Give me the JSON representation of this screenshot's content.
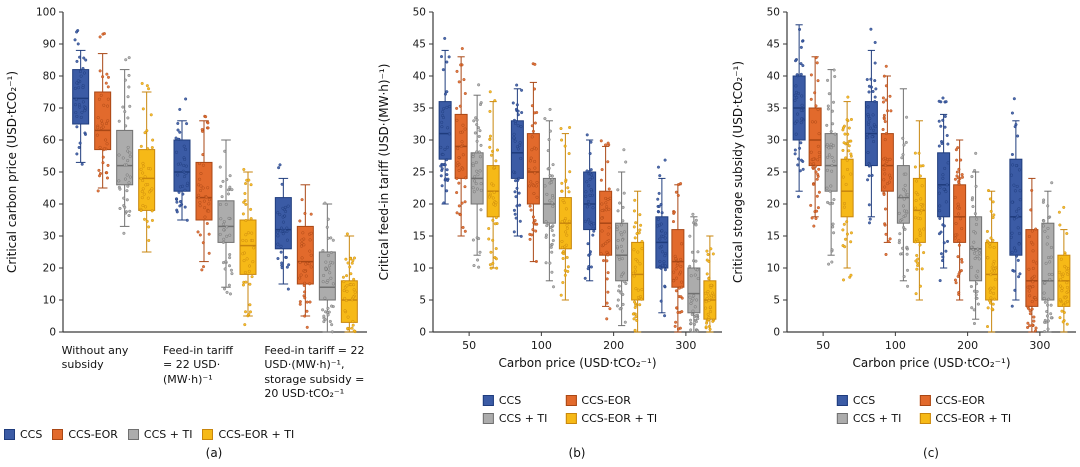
{
  "chart_data": [
    {
      "type": "boxplot",
      "panel_label": "(a)",
      "ylabel": "Critical carbon price (USD·tCO₂⁻¹)",
      "xlabel": "",
      "ylim": [
        0,
        100
      ],
      "ytick_step": 10,
      "grid": false,
      "legend_position": "bottom-row",
      "categories": [
        "Without any\nsubsidy",
        "Feed-in tariff\n= 22 USD·\n(MW·h)⁻¹",
        "Feed-in tariff = 22\nUSD·(MW·h)⁻¹,\nstorage subsidy =\n20 USD·tCO₂⁻¹"
      ],
      "series": [
        {
          "name": "CCS",
          "color": "#3B5BA5",
          "edge": "#1F3C7D",
          "boxes": [
            {
              "whislo": 53,
              "q1": 65,
              "med": 73,
              "q3": 82,
              "whishi": 88
            },
            {
              "whislo": 35,
              "q1": 44,
              "med": 50,
              "q3": 60,
              "whishi": 66
            },
            {
              "whislo": 15,
              "q1": 26,
              "med": 32,
              "q3": 42,
              "whishi": 48
            }
          ]
        },
        {
          "name": "CCS-EOR",
          "color": "#E26A2C",
          "edge": "#A94715",
          "boxes": [
            {
              "whislo": 45,
              "q1": 57,
              "med": 63,
              "q3": 75,
              "whishi": 87
            },
            {
              "whislo": 22,
              "q1": 35,
              "med": 42,
              "q3": 53,
              "whishi": 66
            },
            {
              "whislo": 5,
              "q1": 15,
              "med": 22,
              "q3": 33,
              "whishi": 46
            }
          ]
        },
        {
          "name": "CCS + TI",
          "color": "#ACACAC",
          "edge": "#707070",
          "boxes": [
            {
              "whislo": 33,
              "q1": 46,
              "med": 52,
              "q3": 63,
              "whishi": 82
            },
            {
              "whislo": 14,
              "q1": 28,
              "med": 33,
              "q3": 41,
              "whishi": 60
            },
            {
              "whislo": 0,
              "q1": 10,
              "med": 14,
              "q3": 25,
              "whishi": 40
            }
          ]
        },
        {
          "name": "CCS-EOR + TI",
          "color": "#F6B917",
          "edge": "#C8860D",
          "boxes": [
            {
              "whislo": 25,
              "q1": 38,
              "med": 48,
              "q3": 57,
              "whishi": 75
            },
            {
              "whislo": 5,
              "q1": 18,
              "med": 27,
              "q3": 35,
              "whishi": 50
            },
            {
              "whislo": 0,
              "q1": 3,
              "med": 10,
              "q3": 16,
              "whishi": 30
            }
          ]
        }
      ]
    },
    {
      "type": "boxplot",
      "panel_label": "(b)",
      "ylabel": "Critical feed-in tariff (USD·(MW·h)⁻¹)",
      "xlabel": "Carbon price (USD·tCO₂⁻¹)",
      "ylim": [
        0,
        50
      ],
      "ytick_step": 5,
      "grid": false,
      "legend_position": "bottom-grid",
      "categories": [
        "50",
        "100",
        "200",
        "300"
      ],
      "series": [
        {
          "name": "CCS",
          "color": "#3B5BA5",
          "edge": "#1F3C7D",
          "boxes": [
            {
              "whislo": 20,
              "q1": 27,
              "med": 31,
              "q3": 36,
              "whishi": 44
            },
            {
              "whislo": 15,
              "q1": 24,
              "med": 28,
              "q3": 33,
              "whishi": 38
            },
            {
              "whislo": 8,
              "q1": 16,
              "med": 20,
              "q3": 25,
              "whishi": 30
            },
            {
              "whislo": 3,
              "q1": 10,
              "med": 14,
              "q3": 18,
              "whishi": 24
            }
          ]
        },
        {
          "name": "CCS-EOR",
          "color": "#E26A2C",
          "edge": "#A94715",
          "boxes": [
            {
              "whislo": 15,
              "q1": 24,
              "med": 29,
              "q3": 34,
              "whishi": 43
            },
            {
              "whislo": 11,
              "q1": 20,
              "med": 25,
              "q3": 31,
              "whishi": 39
            },
            {
              "whislo": 4,
              "q1": 12,
              "med": 17,
              "q3": 22,
              "whishi": 29
            },
            {
              "whislo": 0,
              "q1": 7,
              "med": 11,
              "q3": 16,
              "whishi": 23
            }
          ]
        },
        {
          "name": "CCS + TI",
          "color": "#ACACAC",
          "edge": "#707070",
          "boxes": [
            {
              "whislo": 12,
              "q1": 20,
              "med": 24,
              "q3": 28,
              "whishi": 37
            },
            {
              "whislo": 8,
              "q1": 17,
              "med": 20,
              "q3": 24,
              "whishi": 33
            },
            {
              "whislo": 1,
              "q1": 8,
              "med": 12,
              "q3": 17,
              "whishi": 25
            },
            {
              "whislo": 0,
              "q1": 3,
              "med": 6,
              "q3": 10,
              "whishi": 18
            }
          ]
        },
        {
          "name": "CCS-EOR + TI",
          "color": "#F6B917",
          "edge": "#C8860D",
          "boxes": [
            {
              "whislo": 10,
              "q1": 18,
              "med": 22,
              "q3": 26,
              "whishi": 36
            },
            {
              "whislo": 5,
              "q1": 13,
              "med": 17,
              "q3": 21,
              "whishi": 31
            },
            {
              "whislo": 0,
              "q1": 5,
              "med": 9,
              "q3": 14,
              "whishi": 22
            },
            {
              "whislo": 0,
              "q1": 2,
              "med": 5,
              "q3": 8,
              "whishi": 15
            }
          ]
        }
      ]
    },
    {
      "type": "boxplot",
      "panel_label": "(c)",
      "ylabel": "Critical storage subsidy (USD·tCO₂⁻¹)",
      "xlabel": "Carbon price (USD·tCO₂⁻¹)",
      "ylim": [
        0,
        50
      ],
      "ytick_step": 5,
      "grid": false,
      "legend_position": "bottom-grid",
      "categories": [
        "50",
        "100",
        "200",
        "300"
      ],
      "series": [
        {
          "name": "CCS",
          "color": "#3B5BA5",
          "edge": "#1F3C7D",
          "boxes": [
            {
              "whislo": 22,
              "q1": 30,
              "med": 35,
              "q3": 40,
              "whishi": 48
            },
            {
              "whislo": 18,
              "q1": 26,
              "med": 31,
              "q3": 36,
              "whishi": 44
            },
            {
              "whislo": 10,
              "q1": 18,
              "med": 23,
              "q3": 28,
              "whishi": 34
            },
            {
              "whislo": 5,
              "q1": 12,
              "med": 18,
              "q3": 27,
              "whishi": 33
            }
          ]
        },
        {
          "name": "CCS-EOR",
          "color": "#E26A2C",
          "edge": "#A94715",
          "boxes": [
            {
              "whislo": 18,
              "q1": 26,
              "med": 30,
              "q3": 35,
              "whishi": 43
            },
            {
              "whislo": 14,
              "q1": 22,
              "med": 26,
              "q3": 31,
              "whishi": 40
            },
            {
              "whislo": 5,
              "q1": 14,
              "med": 18,
              "q3": 23,
              "whishi": 30
            },
            {
              "whislo": 0,
              "q1": 4,
              "med": 8,
              "q3": 16,
              "whishi": 24
            }
          ]
        },
        {
          "name": "CCS + TI",
          "color": "#ACACAC",
          "edge": "#707070",
          "boxes": [
            {
              "whislo": 12,
              "q1": 22,
              "med": 26,
              "q3": 31,
              "whishi": 41
            },
            {
              "whislo": 8,
              "q1": 17,
              "med": 21,
              "q3": 26,
              "whishi": 38
            },
            {
              "whislo": 2,
              "q1": 8,
              "med": 13,
              "q3": 18,
              "whishi": 25
            },
            {
              "whislo": 0,
              "q1": 5,
              "med": 8,
              "q3": 17,
              "whishi": 22
            }
          ]
        },
        {
          "name": "CCS-EOR + TI",
          "color": "#F6B917",
          "edge": "#C8860D",
          "boxes": [
            {
              "whislo": 10,
              "q1": 18,
              "med": 22,
              "q3": 27,
              "whishi": 36
            },
            {
              "whislo": 5,
              "q1": 14,
              "med": 19,
              "q3": 24,
              "whishi": 33
            },
            {
              "whislo": 0,
              "q1": 5,
              "med": 9,
              "q3": 14,
              "whishi": 22
            },
            {
              "whislo": 0,
              "q1": 4,
              "med": 8,
              "q3": 12,
              "whishi": 16
            }
          ]
        }
      ]
    }
  ]
}
